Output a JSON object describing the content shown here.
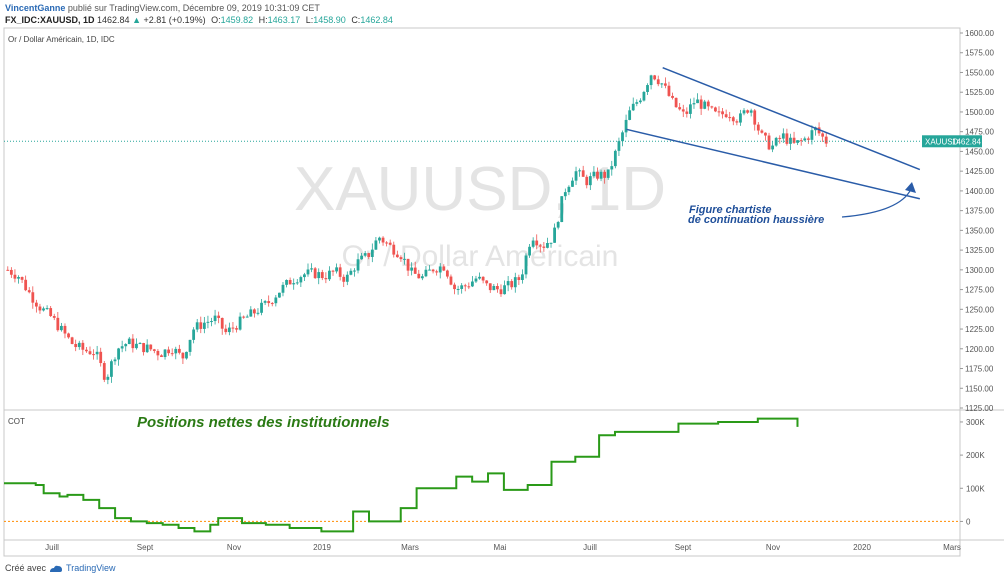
{
  "header": {
    "author": "VincentGanne",
    "published": "publié sur TradingView.com, Décembre 09, 2019 10:31:09 CET",
    "symbol": "FX_IDC:XAUUSD, 1D",
    "last": "1462.84",
    "change_arrow": "▲",
    "change": "+2.81 (+0.19%)",
    "o_label": "O:",
    "o": "1459.82",
    "h_label": "H:",
    "h": "1463.17",
    "l_label": "L:",
    "l": "1458.90",
    "c_label": "C:",
    "c": "1462.84"
  },
  "chart_data": [
    {
      "type": "candlestick",
      "title": "Or / Dollar Américain, 1D, IDC",
      "watermark_symbol": "XAUUSD, 1D",
      "watermark_name": "Or / Dollar Américain",
      "y_ticks": [
        1125,
        1150,
        1175,
        1200,
        1225,
        1250,
        1275,
        1300,
        1325,
        1350,
        1375,
        1400,
        1425,
        1450,
        1475,
        1500,
        1525,
        1550,
        1575,
        1600
      ],
      "y_tick_labels": [
        "1125.00",
        "1150.00",
        "1175.00",
        "1200.00",
        "1225.00",
        "1250.00",
        "1275.00",
        "1300.00",
        "1325.00",
        "1350.00",
        "1375.00",
        "1400.00",
        "1425.00",
        "1450.00",
        "1475.00",
        "1500.00",
        "1525.00",
        "1550.00",
        "1575.00",
        "1600.00"
      ],
      "ylim": [
        1125,
        1600
      ],
      "x_labels": [
        "Juill",
        "Sept",
        "Nov",
        "2019",
        "Mars",
        "Mai",
        "Juill",
        "Sept",
        "Nov",
        "2020",
        "Mars"
      ],
      "price_label_symbol": "XAUUSD",
      "price_label_value": "1462.84",
      "last_price": 1462.84,
      "colors": {
        "up": "#26a69a",
        "down": "#ef5350",
        "channel": "#2a5ca8",
        "price_line": "#26a69a"
      },
      "trend_close": [
        1300,
        1292,
        1270,
        1252,
        1240,
        1222,
        1205,
        1198,
        1196,
        1162,
        1200,
        1208,
        1203,
        1200,
        1194,
        1202,
        1188,
        1225,
        1233,
        1238,
        1220,
        1231,
        1241,
        1250,
        1260,
        1275,
        1287,
        1294,
        1296,
        1292,
        1298,
        1288,
        1309,
        1318,
        1342,
        1330,
        1320,
        1296,
        1290,
        1302,
        1305,
        1275,
        1280,
        1290,
        1278,
        1275,
        1280,
        1290,
        1345,
        1330,
        1342,
        1400,
        1425,
        1412,
        1420,
        1420,
        1460,
        1500,
        1520,
        1550,
        1535,
        1510,
        1495,
        1515,
        1505,
        1495,
        1500,
        1490,
        1508,
        1470,
        1455,
        1470,
        1458,
        1465,
        1478,
        1462.84
      ],
      "channel_upper": {
        "start": [
          0.689,
          1556
        ],
        "end": [
          0.958,
          1427
        ]
      },
      "channel_lower": {
        "start": [
          0.651,
          1478
        ],
        "end": [
          0.958,
          1390
        ]
      },
      "annotation_text": [
        "Figure chartiste",
        "de continuation haussière"
      ],
      "annotation_arrow": "curved-arrow-up-right"
    },
    {
      "type": "line",
      "title": "COT",
      "headline": "Positions nettes des institutionnels",
      "y_ticks": [
        0,
        100000,
        200000,
        300000
      ],
      "y_tick_labels": [
        "0",
        "100K",
        "200K",
        "300K"
      ],
      "ylim": [
        -50000,
        330000
      ],
      "zero_line_color": "#ff8c00",
      "line_color": "#2a9a18",
      "x": [
        0,
        0.04,
        0.05,
        0.07,
        0.08,
        0.1,
        0.12,
        0.14,
        0.16,
        0.18,
        0.2,
        0.22,
        0.24,
        0.26,
        0.27,
        0.3,
        0.33,
        0.36,
        0.4,
        0.44,
        0.46,
        0.5,
        0.52,
        0.55,
        0.57,
        0.59,
        0.61,
        0.63,
        0.66,
        0.69,
        0.72,
        0.75,
        0.77,
        0.8,
        0.85,
        0.9,
        0.95,
        1.0
      ],
      "values": [
        115000,
        110000,
        85000,
        75000,
        80000,
        65000,
        40000,
        10000,
        0,
        -5000,
        -10000,
        -20000,
        -30000,
        -10000,
        10000,
        -5000,
        -10000,
        -20000,
        -30000,
        30000,
        0,
        40000,
        100000,
        100000,
        135000,
        120000,
        145000,
        95000,
        110000,
        180000,
        195000,
        260000,
        270000,
        270000,
        295000,
        300000,
        310000,
        285000
      ],
      "x_start": 0.0,
      "x_end": 0.83
    }
  ],
  "footer": {
    "created_with": "Créé avec",
    "brand": "TradingView"
  }
}
